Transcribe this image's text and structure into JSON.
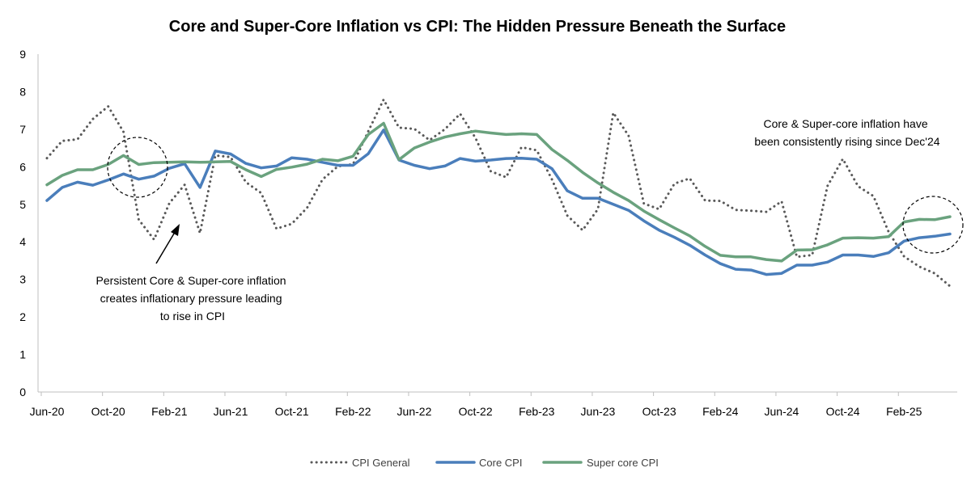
{
  "chart_data": {
    "type": "line",
    "title": "Core and Super-Core Inflation vs CPI: The Hidden Pressure Beneath the Surface",
    "xlabel": "",
    "ylabel": "",
    "ylim": [
      0,
      9
    ],
    "y_ticks": [
      0,
      1,
      2,
      3,
      4,
      5,
      6,
      7,
      8,
      9
    ],
    "grid": false,
    "legend_position": "bottom",
    "x_tick_labels": [
      {
        "index": 0,
        "label": "Jun-20"
      },
      {
        "index": 4,
        "label": "Oct-20"
      },
      {
        "index": 8,
        "label": "Feb-21"
      },
      {
        "index": 12,
        "label": "Jun-21"
      },
      {
        "index": 16,
        "label": "Oct-21"
      },
      {
        "index": 20,
        "label": "Feb-22"
      },
      {
        "index": 24,
        "label": "Jun-22"
      },
      {
        "index": 28,
        "label": "Oct-22"
      },
      {
        "index": 32,
        "label": "Feb-23"
      },
      {
        "index": 36,
        "label": "Jun-23"
      },
      {
        "index": 40,
        "label": "Oct-23"
      },
      {
        "index": 44,
        "label": "Feb-24"
      },
      {
        "index": 48,
        "label": "Jun-24"
      },
      {
        "index": 52,
        "label": "Oct-24"
      },
      {
        "index": 56,
        "label": "Feb-25"
      }
    ],
    "series": [
      {
        "name": "CPI General",
        "color": "#595959",
        "style": "dotted",
        "values": [
          6.23,
          6.69,
          6.73,
          7.27,
          7.61,
          6.93,
          4.59,
          4.06,
          5.03,
          5.52,
          4.23,
          6.3,
          6.26,
          5.59,
          5.3,
          4.35,
          4.48,
          4.91,
          5.66,
          6.01,
          6.07,
          6.95,
          7.79,
          7.04,
          7.01,
          6.71,
          7.0,
          7.41,
          6.77,
          5.88,
          5.72,
          6.52,
          6.44,
          5.66,
          4.7,
          4.31,
          4.87,
          7.44,
          6.83,
          5.02,
          4.87,
          5.55,
          5.69,
          5.1,
          5.09,
          4.85,
          4.83,
          4.8,
          5.08,
          3.6,
          3.65,
          5.49,
          6.21,
          5.48,
          5.22,
          4.26,
          3.61,
          3.34,
          3.16,
          2.82
        ]
      },
      {
        "name": "Core CPI",
        "color": "#4a7ebb",
        "style": "solid",
        "values": [
          5.1,
          5.45,
          5.59,
          5.51,
          5.65,
          5.81,
          5.67,
          5.75,
          5.96,
          6.08,
          5.45,
          6.42,
          6.34,
          6.09,
          5.97,
          6.02,
          6.24,
          6.2,
          6.12,
          6.04,
          6.04,
          6.35,
          6.98,
          6.18,
          6.04,
          5.95,
          6.02,
          6.22,
          6.15,
          6.18,
          6.22,
          6.23,
          6.2,
          5.95,
          5.36,
          5.16,
          5.16,
          5.0,
          4.84,
          4.56,
          4.31,
          4.12,
          3.91,
          3.65,
          3.42,
          3.27,
          3.25,
          3.13,
          3.16,
          3.38,
          3.38,
          3.46,
          3.65,
          3.65,
          3.61,
          3.71,
          4.02,
          4.11,
          4.15,
          4.21
        ]
      },
      {
        "name": "Super core CPI",
        "color": "#6aa27e",
        "style": "solid",
        "values": [
          5.52,
          5.77,
          5.92,
          5.92,
          6.06,
          6.3,
          6.06,
          6.11,
          6.12,
          6.13,
          6.12,
          6.13,
          6.14,
          5.92,
          5.74,
          5.93,
          5.99,
          6.07,
          6.2,
          6.16,
          6.28,
          6.86,
          7.16,
          6.19,
          6.5,
          6.66,
          6.79,
          6.88,
          6.95,
          6.9,
          6.86,
          6.88,
          6.86,
          6.46,
          6.17,
          5.85,
          5.57,
          5.32,
          5.1,
          4.82,
          4.59,
          4.37,
          4.16,
          3.88,
          3.64,
          3.6,
          3.6,
          3.53,
          3.49,
          3.78,
          3.79,
          3.92,
          4.1,
          4.11,
          4.1,
          4.14,
          4.53,
          4.6,
          4.59,
          4.67
        ]
      }
    ],
    "annotations": [
      {
        "lines": [
          "Persistent Core & Super-core inflation",
          "creates inflationary pressure leading",
          "to rise in CPI"
        ]
      },
      {
        "lines": [
          "Core & Super-core inflation have",
          "been consistently rising since Dec'24"
        ]
      }
    ]
  }
}
